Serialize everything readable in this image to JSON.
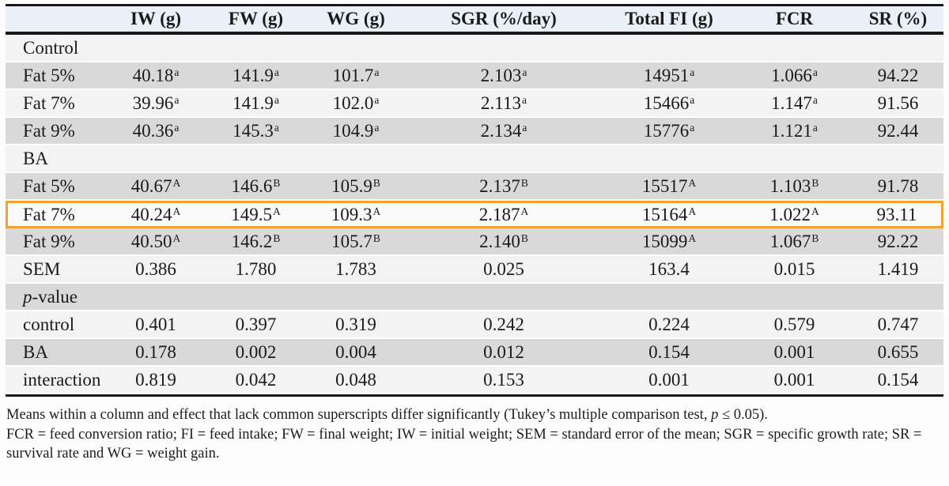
{
  "colors": {
    "header_bg": "#e9f0f8",
    "row_light": "#f3f3f3",
    "row_dark": "#d9d9d9",
    "row_highlight_bg": "#fbfbfb",
    "highlight_border": "#f0a32e"
  },
  "table": {
    "columns": [
      "",
      "IW (g)",
      "FW (g)",
      "WG (g)",
      "SGR (%/day)",
      "Total FI (g)",
      "FCR",
      "SR (%)"
    ],
    "rows": [
      {
        "kind": "section",
        "label": "Control",
        "shade": "light"
      },
      {
        "kind": "data",
        "label": "Fat 5%",
        "shade": "dark",
        "cells": [
          [
            "40.18",
            "a"
          ],
          [
            "141.9",
            "a"
          ],
          [
            "101.7",
            "a"
          ],
          [
            "2.103",
            "a"
          ],
          [
            "14951",
            "a"
          ],
          [
            "1.066",
            "a"
          ],
          [
            "94.22",
            ""
          ]
        ]
      },
      {
        "kind": "data",
        "label": "Fat 7%",
        "shade": "light",
        "cells": [
          [
            "39.96",
            "a"
          ],
          [
            "141.9",
            "a"
          ],
          [
            "102.0",
            "a"
          ],
          [
            "2.113",
            "a"
          ],
          [
            "15466",
            "a"
          ],
          [
            "1.147",
            "a"
          ],
          [
            "91.56",
            ""
          ]
        ]
      },
      {
        "kind": "data",
        "label": "Fat 9%",
        "shade": "dark",
        "cells": [
          [
            "40.36",
            "a"
          ],
          [
            "145.3",
            "a"
          ],
          [
            "104.9",
            "a"
          ],
          [
            "2.134",
            "a"
          ],
          [
            "15776",
            "a"
          ],
          [
            "1.121",
            "a"
          ],
          [
            "92.44",
            ""
          ]
        ]
      },
      {
        "kind": "section",
        "label": "BA",
        "shade": "light"
      },
      {
        "kind": "data",
        "label": "Fat 5%",
        "shade": "dark",
        "cells": [
          [
            "40.67",
            "A"
          ],
          [
            "146.6",
            "B"
          ],
          [
            "105.9",
            "B"
          ],
          [
            "2.137",
            "B"
          ],
          [
            "15517",
            "A"
          ],
          [
            "1.103",
            "B"
          ],
          [
            "91.78",
            ""
          ]
        ]
      },
      {
        "kind": "data",
        "label": "Fat 7%",
        "shade": "light",
        "highlight": true,
        "cells": [
          [
            "40.24",
            "A"
          ],
          [
            "149.5",
            "A"
          ],
          [
            "109.3",
            "A"
          ],
          [
            "2.187",
            "A"
          ],
          [
            "15164",
            "A"
          ],
          [
            "1.022",
            "A"
          ],
          [
            "93.11",
            ""
          ]
        ]
      },
      {
        "kind": "data",
        "label": "Fat 9%",
        "shade": "dark",
        "cells": [
          [
            "40.50",
            "A"
          ],
          [
            "146.2",
            "B"
          ],
          [
            "105.7",
            "B"
          ],
          [
            "2.140",
            "B"
          ],
          [
            "15099",
            "A"
          ],
          [
            "1.067",
            "B"
          ],
          [
            "92.22",
            ""
          ]
        ]
      },
      {
        "kind": "data",
        "label": "SEM",
        "shade": "light",
        "cells": [
          [
            "0.386",
            ""
          ],
          [
            "1.780",
            ""
          ],
          [
            "1.783",
            ""
          ],
          [
            "0.025",
            ""
          ],
          [
            "163.4",
            ""
          ],
          [
            "0.015",
            ""
          ],
          [
            "1.419",
            ""
          ]
        ]
      },
      {
        "kind": "section",
        "label": "p-value",
        "shade": "dark",
        "italic_first": true
      },
      {
        "kind": "data",
        "label": "control",
        "shade": "light",
        "cells": [
          [
            "0.401",
            ""
          ],
          [
            "0.397",
            ""
          ],
          [
            "0.319",
            ""
          ],
          [
            "0.242",
            ""
          ],
          [
            "0.224",
            ""
          ],
          [
            "0.579",
            ""
          ],
          [
            "0.747",
            ""
          ]
        ]
      },
      {
        "kind": "data",
        "label": "BA",
        "shade": "dark",
        "cells": [
          [
            "0.178",
            ""
          ],
          [
            "0.002",
            ""
          ],
          [
            "0.004",
            ""
          ],
          [
            "0.012",
            ""
          ],
          [
            "0.154",
            ""
          ],
          [
            "0.001",
            ""
          ],
          [
            "0.655",
            ""
          ]
        ]
      },
      {
        "kind": "data",
        "label": "interaction",
        "shade": "light",
        "cells": [
          [
            "0.819",
            ""
          ],
          [
            "0.042",
            ""
          ],
          [
            "0.048",
            ""
          ],
          [
            "0.153",
            ""
          ],
          [
            "0.001",
            ""
          ],
          [
            "0.001",
            ""
          ],
          [
            "0.154",
            ""
          ]
        ]
      }
    ]
  },
  "footnotes": {
    "note1": {
      "pre": "Means within a column and effect that lack common superscripts differ significantly (Tukey’s multiple comparison test, ",
      "italic": "p",
      "post": " ≤ 0.05)."
    },
    "note2": "FCR = feed conversion ratio; FI = feed intake; FW = final weight; IW = initial weight; SEM = standard error of the mean; SGR = specific growth rate; SR = survival rate and WG = weight gain."
  }
}
